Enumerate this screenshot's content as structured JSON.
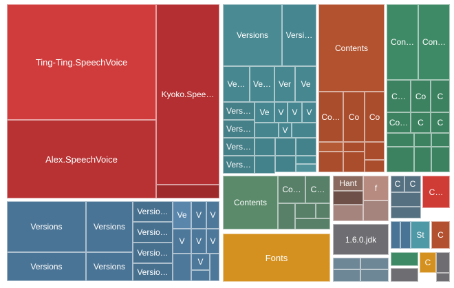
{
  "treemap": {
    "groups": [
      {
        "name": "speech-voices",
        "color": "#c8373a",
        "items": [
          {
            "label": "Ting-Ting.SpeechVoice"
          },
          {
            "label": "Alex.SpeechVoice"
          },
          {
            "label": "Kyoko.Spee…"
          },
          {
            "label": ""
          }
        ]
      },
      {
        "name": "framework-versions-teal",
        "color": "#4a8a93",
        "items": [
          {
            "label": "Versions"
          },
          {
            "label": "Versi…"
          },
          {
            "label": "Ve…"
          },
          {
            "label": "Ve…"
          },
          {
            "label": "Ver"
          },
          {
            "label": "Ve"
          },
          {
            "label": "Vers…"
          },
          {
            "label": "Ve"
          },
          {
            "label": "V"
          },
          {
            "label": "V"
          },
          {
            "label": "V"
          },
          {
            "label": "Vers…"
          },
          {
            "label": "Vers…"
          },
          {
            "label": "Vers…"
          },
          {
            "label": "V"
          }
        ]
      },
      {
        "name": "contents-rust",
        "color": "#b2522f",
        "items": [
          {
            "label": "Contents"
          },
          {
            "label": "Co…"
          },
          {
            "label": "Co"
          },
          {
            "label": "Co"
          }
        ]
      },
      {
        "name": "contents-green",
        "color": "#3f8a66",
        "items": [
          {
            "label": "Con…"
          },
          {
            "label": "Con…"
          },
          {
            "label": "C…"
          },
          {
            "label": "Co"
          },
          {
            "label": "C"
          },
          {
            "label": "Co…"
          },
          {
            "label": "C"
          },
          {
            "label": "C"
          }
        ]
      },
      {
        "name": "framework-versions-blue",
        "color": "#4a7495",
        "items": [
          {
            "label": "Versions"
          },
          {
            "label": "Versions"
          },
          {
            "label": "Versio…"
          },
          {
            "label": "Versio…"
          },
          {
            "label": "Versio…"
          },
          {
            "label": "Versio…"
          },
          {
            "label": "Versions"
          },
          {
            "label": "Versions"
          },
          {
            "label": "Ve"
          },
          {
            "label": "V"
          },
          {
            "label": "V"
          },
          {
            "label": "V"
          },
          {
            "label": "V"
          },
          {
            "label": "V"
          },
          {
            "label": "V"
          }
        ]
      },
      {
        "name": "contents-olive",
        "color": "#5a8a6a",
        "items": [
          {
            "label": "Contents"
          },
          {
            "label": "Co…"
          },
          {
            "label": "C…"
          }
        ]
      },
      {
        "name": "fonts",
        "color": "#d4911f",
        "items": [
          {
            "label": "Fonts"
          }
        ]
      },
      {
        "name": "hant-f",
        "color": "#8a6a5e",
        "items": [
          {
            "label": "Hant"
          },
          {
            "label": "f"
          }
        ]
      },
      {
        "name": "jdk",
        "color": "#6e6e72",
        "items": [
          {
            "label": "1.6.0.jdk"
          }
        ]
      },
      {
        "name": "misc-right",
        "color": "#557080",
        "items": [
          {
            "label": "C"
          },
          {
            "label": "C"
          },
          {
            "label": "C…"
          },
          {
            "label": "St"
          },
          {
            "label": "C"
          },
          {
            "label": "C"
          }
        ]
      }
    ]
  }
}
